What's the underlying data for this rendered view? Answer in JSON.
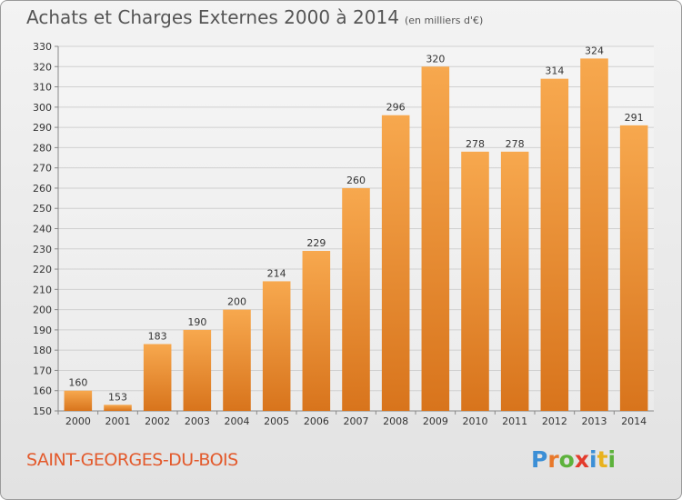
{
  "title": "Achats et Charges Externes 2000 à 2014",
  "subtitle": "(en milliers d'€)",
  "commune": "SAINT-GEORGES-DU-BOIS",
  "logo": {
    "text": "Proxiti",
    "letters": [
      {
        "ch": "P",
        "color": "#3c8fd6"
      },
      {
        "ch": "r",
        "color": "#e8782a"
      },
      {
        "ch": "o",
        "color": "#5db23c"
      },
      {
        "ch": "x",
        "color": "#e33b2c"
      },
      {
        "ch": "i",
        "color": "#3c8fd6"
      },
      {
        "ch": "t",
        "color": "#e8b21e"
      },
      {
        "ch": "i",
        "color": "#5db23c"
      }
    ]
  },
  "colors": {
    "bar_top": "#f7a84e",
    "bar_bottom": "#d8741c",
    "commune": "#e35a2c",
    "grid": "#d0d0d0"
  },
  "chart_data": {
    "type": "bar",
    "title": "Achats et Charges Externes 2000 à 2014",
    "subtitle": "(en milliers d'€)",
    "categories": [
      "2000",
      "2001",
      "2002",
      "2003",
      "2004",
      "2005",
      "2006",
      "2007",
      "2008",
      "2009",
      "2010",
      "2011",
      "2012",
      "2013",
      "2014"
    ],
    "values": [
      160,
      153,
      183,
      190,
      200,
      214,
      229,
      260,
      296,
      320,
      278,
      278,
      314,
      324,
      291
    ],
    "ylim": [
      150,
      330
    ],
    "yticks": [
      150,
      160,
      170,
      180,
      190,
      200,
      210,
      220,
      230,
      240,
      250,
      260,
      270,
      280,
      290,
      300,
      310,
      320,
      330
    ],
    "grid": true,
    "legend": "none"
  }
}
